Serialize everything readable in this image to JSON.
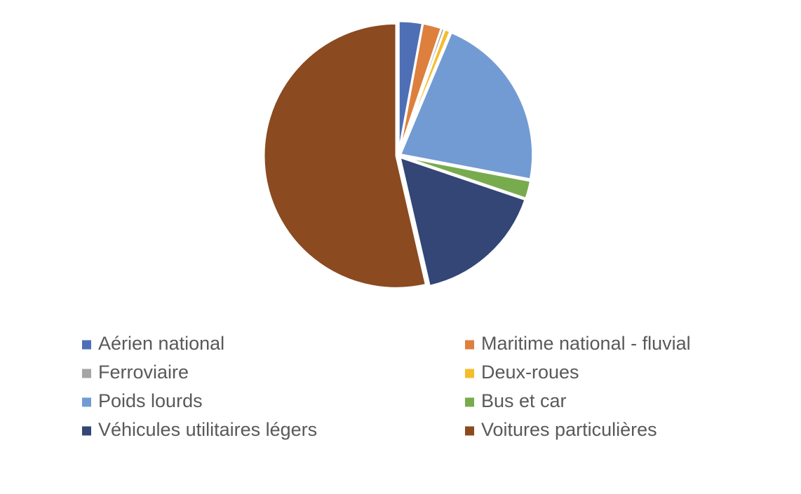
{
  "chart_data": {
    "type": "pie",
    "categories": [
      "Aérien national",
      "Maritime national - fluvial",
      "Ferroviaire",
      "Deux-roues",
      "Poids lourds",
      "Bus et car",
      "Véhicules utilitaires légers",
      "Voitures particulières"
    ],
    "values": [
      2.9,
      2.3,
      0.4,
      0.7,
      21.7,
      2.2,
      16.2,
      53.6
    ],
    "colors": [
      "#4e6fb5",
      "#dd7f3d",
      "#a5a5a5",
      "#f3bd2b",
      "#729bd3",
      "#78ab4e",
      "#334675",
      "#8b4a20"
    ],
    "legend": "bottom"
  }
}
